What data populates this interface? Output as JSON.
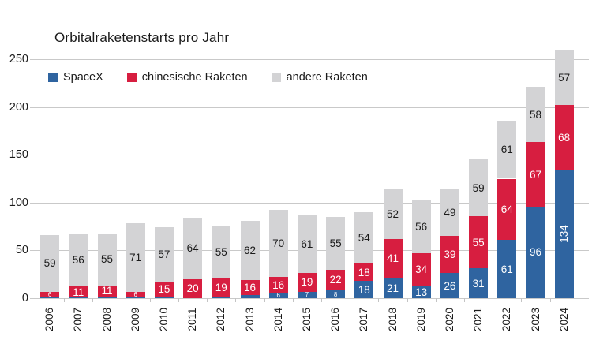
{
  "title": "Orbitalraketenstarts pro Jahr",
  "legend": [
    {
      "label": "SpaceX",
      "color": "#2f64a0"
    },
    {
      "label": "chinesische Raketen",
      "color": "#d71e40"
    },
    {
      "label": "andere Raketen",
      "color": "#d3d3d5"
    }
  ],
  "colors": {
    "spacex_blue": "#2f64a0",
    "china_red": "#d71e40",
    "other_gray": "#d3d3d5",
    "gridline": "#c9c9c9",
    "label_on_color": "#ffffff",
    "label_on_gray": "#1a1a1a"
  },
  "chart_data": {
    "type": "bar",
    "stacked": true,
    "title": "Orbitalraketenstarts pro Jahr",
    "xlabel": "",
    "ylabel": "",
    "categories": [
      "2006",
      "2007",
      "2008",
      "2009",
      "2010",
      "2011",
      "2012",
      "2013",
      "2014",
      "2015",
      "2016",
      "2017",
      "2018",
      "2019",
      "2020",
      "2021",
      "2022",
      "2023",
      "2024"
    ],
    "series": [
      {
        "name": "SpaceX",
        "color": "#2f64a0",
        "label_color": "#ffffff",
        "values": [
          1,
          1,
          2,
          1,
          2,
          0,
          2,
          3,
          6,
          7,
          8,
          18,
          21,
          13,
          26,
          31,
          61,
          96,
          134
        ]
      },
      {
        "name": "chinesische Raketen",
        "color": "#d71e40",
        "label_color": "#ffffff",
        "values": [
          6,
          11,
          11,
          6,
          15,
          20,
          19,
          16,
          16,
          19,
          22,
          18,
          41,
          34,
          39,
          55,
          64,
          67,
          68
        ]
      },
      {
        "name": "andere Raketen",
        "color": "#d3d3d5",
        "label_color": "#1a1a1a",
        "values": [
          59,
          56,
          55,
          71,
          57,
          64,
          55,
          62,
          70,
          61,
          55,
          54,
          52,
          56,
          49,
          59,
          61,
          58,
          57
        ]
      }
    ],
    "ylim": [
      0,
      250
    ],
    "yticks": [
      0,
      50,
      100,
      150,
      200,
      250
    ],
    "grid": true,
    "legend_position": "top-left",
    "x_tick_rotation": -90,
    "label_rule": "segment values >= 6 shown inside segment; 134 in 2024 rotated vertically"
  }
}
